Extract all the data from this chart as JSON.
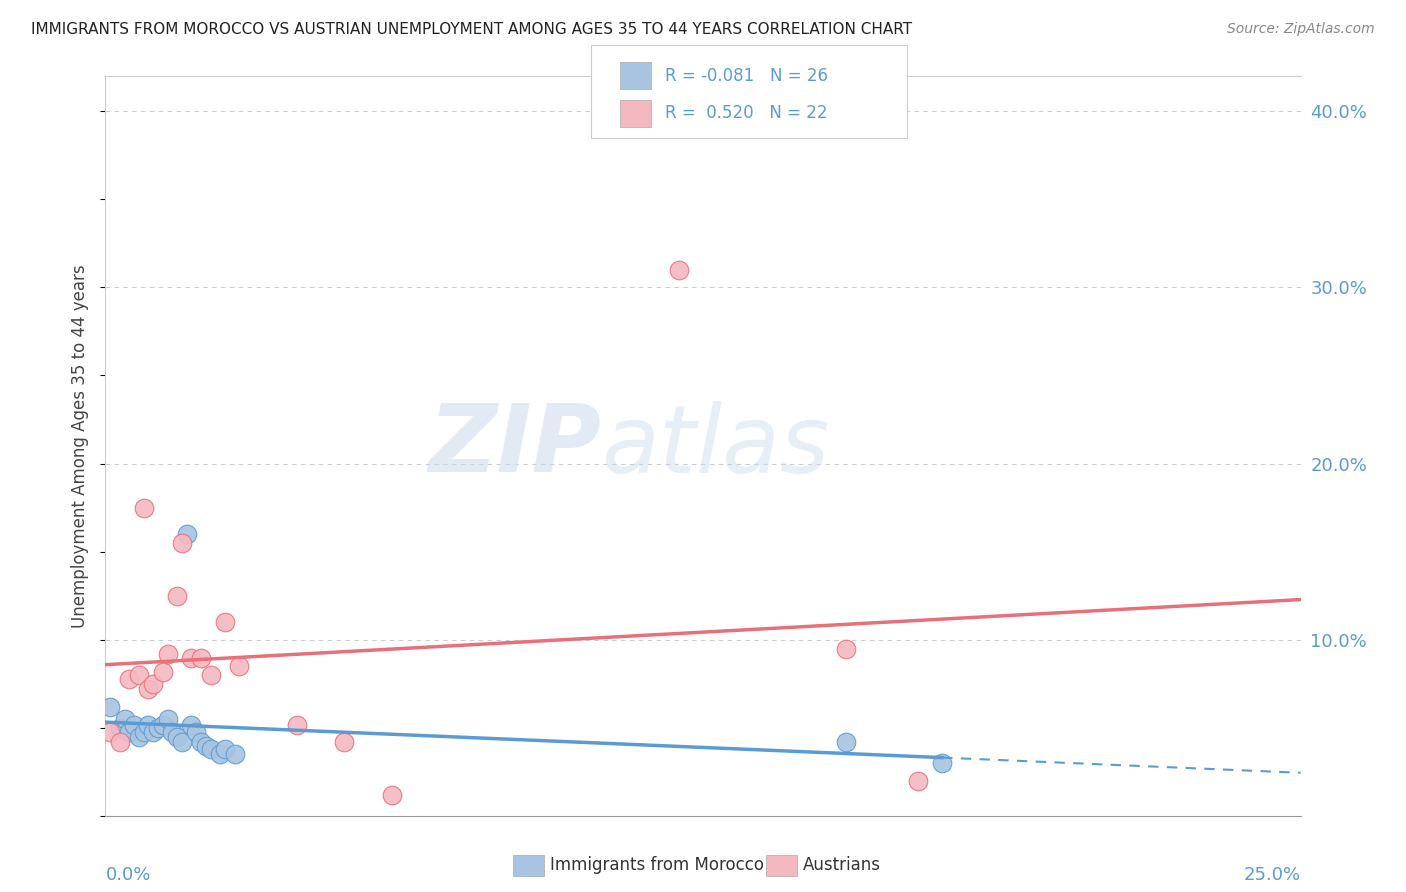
{
  "title": "IMMIGRANTS FROM MOROCCO VS AUSTRIAN UNEMPLOYMENT AMONG AGES 35 TO 44 YEARS CORRELATION CHART",
  "source": "Source: ZipAtlas.com",
  "ylabel": "Unemployment Among Ages 35 to 44 years",
  "xlim": [
    0.0,
    0.25
  ],
  "ylim": [
    0.0,
    0.42
  ],
  "blue_color": "#a8c4e0",
  "blue_dark": "#5b9bd5",
  "pink_color": "#f4b8c1",
  "pink_dark": "#e8707a",
  "R_blue": -0.081,
  "N_blue": 26,
  "R_pink": 0.52,
  "N_pink": 22,
  "blue_scatter_x": [
    0.001,
    0.003,
    0.004,
    0.005,
    0.006,
    0.007,
    0.008,
    0.009,
    0.01,
    0.011,
    0.012,
    0.013,
    0.014,
    0.015,
    0.016,
    0.017,
    0.018,
    0.019,
    0.02,
    0.021,
    0.022,
    0.024,
    0.025,
    0.027,
    0.155,
    0.175
  ],
  "blue_scatter_y": [
    0.062,
    0.05,
    0.055,
    0.048,
    0.052,
    0.045,
    0.048,
    0.052,
    0.048,
    0.05,
    0.052,
    0.055,
    0.048,
    0.045,
    0.042,
    0.16,
    0.052,
    0.048,
    0.042,
    0.04,
    0.038,
    0.035,
    0.038,
    0.035,
    0.042,
    0.03
  ],
  "pink_scatter_x": [
    0.001,
    0.003,
    0.005,
    0.007,
    0.008,
    0.009,
    0.01,
    0.012,
    0.013,
    0.015,
    0.016,
    0.018,
    0.02,
    0.022,
    0.025,
    0.028,
    0.04,
    0.05,
    0.06,
    0.12,
    0.155,
    0.17
  ],
  "pink_scatter_y": [
    0.048,
    0.042,
    0.078,
    0.08,
    0.175,
    0.072,
    0.075,
    0.082,
    0.092,
    0.125,
    0.155,
    0.09,
    0.09,
    0.08,
    0.11,
    0.085,
    0.052,
    0.042,
    0.012,
    0.31,
    0.095,
    0.02
  ],
  "watermark_zip": "ZIP",
  "watermark_atlas": "atlas",
  "background_color": "#ffffff",
  "grid_color": "#cccccc"
}
